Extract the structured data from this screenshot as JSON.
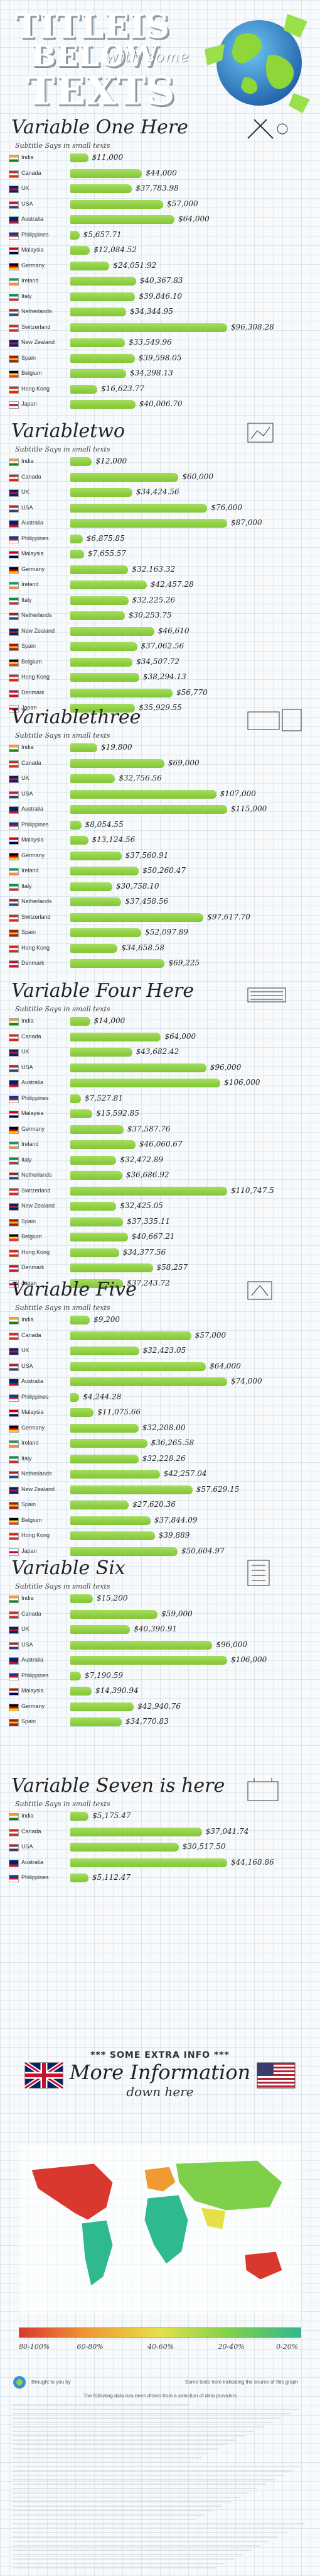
{
  "header": {
    "title_line1": "TITLEIS",
    "title_line2": "BELOW",
    "title_with": "with some",
    "title_line3": "TEXTS"
  },
  "sections": [
    {
      "title": "Variable One Here",
      "subtitle": "Subtitle Says in small texts",
      "rows": [
        {
          "country": "India",
          "value": 11000,
          "label": "$11,000"
        },
        {
          "country": "Canada",
          "value": 44000,
          "label": "$44,000"
        },
        {
          "country": "UK",
          "value": 37783.98,
          "label": "$37,783.98"
        },
        {
          "country": "USA",
          "value": 57000,
          "label": "$57,000"
        },
        {
          "country": "Australia",
          "value": 64000,
          "label": "$64,000"
        },
        {
          "country": "Philippines",
          "value": 5657.71,
          "label": "$5,657.71"
        },
        {
          "country": "Malaysia",
          "value": 12084.52,
          "label": "$12,084.52"
        },
        {
          "country": "Germany",
          "value": 24051.92,
          "label": "$24,051.92"
        },
        {
          "country": "Ireland",
          "value": 40367.83,
          "label": "$40,367.83"
        },
        {
          "country": "Italy",
          "value": 39846.1,
          "label": "$39,846.10"
        },
        {
          "country": "Netherlands",
          "value": 34344.95,
          "label": "$34,344.95"
        },
        {
          "country": "Switzerland",
          "value": 96308.28,
          "label": "$96,308.28"
        },
        {
          "country": "New Zealand",
          "value": 33549.96,
          "label": "$33,549.96"
        },
        {
          "country": "Spain",
          "value": 39598.05,
          "label": "$39,598.05"
        },
        {
          "country": "Belgium",
          "value": 34298.13,
          "label": "$34,298.13"
        },
        {
          "country": "Hong Kong",
          "value": 16623.77,
          "label": "$16,623.77"
        },
        {
          "country": "Japan",
          "value": 40006.7,
          "label": "$40,006.70"
        }
      ]
    },
    {
      "title": "Variabletwo",
      "subtitle": "Subtitle Says in small texts",
      "rows": [
        {
          "country": "India",
          "value": 12000,
          "label": "$12,000"
        },
        {
          "country": "Canada",
          "value": 60000,
          "label": "$60,000"
        },
        {
          "country": "UK",
          "value": 34424.56,
          "label": "$34,424.56"
        },
        {
          "country": "USA",
          "value": 76000,
          "label": "$76,000"
        },
        {
          "country": "Australia",
          "value": 87000,
          "label": "$87,000"
        },
        {
          "country": "Philippines",
          "value": 6875.85,
          "label": "$6,875.85"
        },
        {
          "country": "Malaysia",
          "value": 7655.57,
          "label": "$7,655.57"
        },
        {
          "country": "Germany",
          "value": 32163.32,
          "label": "$32,163.32"
        },
        {
          "country": "Ireland",
          "value": 42457.28,
          "label": "$42,457.28"
        },
        {
          "country": "Italy",
          "value": 32225.26,
          "label": "$32,225.26"
        },
        {
          "country": "Netherlands",
          "value": 30253.75,
          "label": "$30,253.75"
        },
        {
          "country": "New Zealand",
          "value": 46610,
          "label": "$46,610"
        },
        {
          "country": "Spain",
          "value": 37062.56,
          "label": "$37,062.56"
        },
        {
          "country": "Belgium",
          "value": 34507.72,
          "label": "$34,507.72"
        },
        {
          "country": "Hong Kong",
          "value": 38294.13,
          "label": "$38,294.13"
        },
        {
          "country": "Denmark",
          "value": 56770,
          "label": "$56,770"
        },
        {
          "country": "Japan",
          "value": 35929.55,
          "label": "$35,929.55"
        }
      ]
    },
    {
      "title": "Variablethree",
      "subtitle": "Subtitle Says in small texts",
      "rows": [
        {
          "country": "India",
          "value": 19800,
          "label": "$19,800"
        },
        {
          "country": "Canada",
          "value": 69000,
          "label": "$69,000"
        },
        {
          "country": "UK",
          "value": 32756.56,
          "label": "$32,756.56"
        },
        {
          "country": "USA",
          "value": 107000,
          "label": "$107,000"
        },
        {
          "country": "Australia",
          "value": 115000,
          "label": "$115,000"
        },
        {
          "country": "Philippines",
          "value": 8054.55,
          "label": "$8,054.55"
        },
        {
          "country": "Malaysia",
          "value": 13124.56,
          "label": "$13,124.56"
        },
        {
          "country": "Germany",
          "value": 37560.91,
          "label": "$37,560.91"
        },
        {
          "country": "Ireland",
          "value": 50260.47,
          "label": "$50,260.47"
        },
        {
          "country": "Italy",
          "value": 30758.1,
          "label": "$30,758.10"
        },
        {
          "country": "Netherlands",
          "value": 37458.56,
          "label": "$37,458.56"
        },
        {
          "country": "Switzerland",
          "value": 97617.7,
          "label": "$97,617.70"
        },
        {
          "country": "Spain",
          "value": 52097.89,
          "label": "$52,097.89"
        },
        {
          "country": "Hong Kong",
          "value": 34658.58,
          "label": "$34,658.58"
        },
        {
          "country": "Denmark",
          "value": 69225,
          "label": "$69,225"
        }
      ]
    },
    {
      "title": "Variable Four Here",
      "subtitle": "Subtitle Says in small texts",
      "rows": [
        {
          "country": "India",
          "value": 14000,
          "label": "$14,000"
        },
        {
          "country": "Canada",
          "value": 64000,
          "label": "$64,000"
        },
        {
          "country": "UK",
          "value": 43682.42,
          "label": "$43,682.42"
        },
        {
          "country": "USA",
          "value": 96000,
          "label": "$96,000"
        },
        {
          "country": "Australia",
          "value": 106000,
          "label": "$106,000"
        },
        {
          "country": "Philippines",
          "value": 7527.81,
          "label": "$7,527.81"
        },
        {
          "country": "Malaysia",
          "value": 15592.85,
          "label": "$15,592.85"
        },
        {
          "country": "Germany",
          "value": 37587.76,
          "label": "$37,587.76"
        },
        {
          "country": "Ireland",
          "value": 46060.67,
          "label": "$46,060.67"
        },
        {
          "country": "Italy",
          "value": 32472.89,
          "label": "$32,472.89"
        },
        {
          "country": "Netherlands",
          "value": 36686.92,
          "label": "$36,686.92"
        },
        {
          "country": "Switzerland",
          "value": 110747.5,
          "label": "$110,747.5"
        },
        {
          "country": "New Zealand",
          "value": 32425.05,
          "label": "$32,425.05"
        },
        {
          "country": "Spain",
          "value": 37335.11,
          "label": "$37,335.11"
        },
        {
          "country": "Belgium",
          "value": 40667.21,
          "label": "$40,667.21"
        },
        {
          "country": "Hong Kong",
          "value": 34377.56,
          "label": "$34,377.56"
        },
        {
          "country": "Denmark",
          "value": 58257,
          "label": "$58,257"
        },
        {
          "country": "Japan",
          "value": 37243.72,
          "label": "$37,243.72"
        }
      ]
    },
    {
      "title": "Variable Five",
      "subtitle": "Subtitle Says in small texts",
      "rows": [
        {
          "country": "India",
          "value": 9200,
          "label": "$9,200"
        },
        {
          "country": "Canada",
          "value": 57000,
          "label": "$57,000"
        },
        {
          "country": "UK",
          "value": 32423.05,
          "label": "$32,423.05"
        },
        {
          "country": "USA",
          "value": 64000,
          "label": "$64,000"
        },
        {
          "country": "Australia",
          "value": 74000,
          "label": "$74,000"
        },
        {
          "country": "Philippines",
          "value": 4244.28,
          "label": "$4,244.28"
        },
        {
          "country": "Malaysia",
          "value": 11075.66,
          "label": "$11,075.66"
        },
        {
          "country": "Germany",
          "value": 32208,
          "label": "$32,208.00"
        },
        {
          "country": "Ireland",
          "value": 36265.58,
          "label": "$36,265.58"
        },
        {
          "country": "Italy",
          "value": 32228.26,
          "label": "$32,228.26"
        },
        {
          "country": "Netherlands",
          "value": 42257.04,
          "label": "$42,257.04"
        },
        {
          "country": "New Zealand",
          "value": 57629.15,
          "label": "$57,629.15"
        },
        {
          "country": "Spain",
          "value": 27620.36,
          "label": "$27,620.36"
        },
        {
          "country": "Belgium",
          "value": 37844.09,
          "label": "$37,844.09"
        },
        {
          "country": "Hong Kong",
          "value": 39889,
          "label": "$39,889"
        },
        {
          "country": "Japan",
          "value": 50604.97,
          "label": "$50,604.97"
        }
      ]
    },
    {
      "title": "Variable Six",
      "subtitle": "Subtitle Says in small texts",
      "rows": [
        {
          "country": "India",
          "value": 15200,
          "label": "$15,200"
        },
        {
          "country": "Canada",
          "value": 59000,
          "label": "$59,000"
        },
        {
          "country": "UK",
          "value": 40390.91,
          "label": "$40,390.91"
        },
        {
          "country": "USA",
          "value": 96000,
          "label": "$96,000"
        },
        {
          "country": "Australia",
          "value": 106000,
          "label": "$106,000"
        },
        {
          "country": "Philippines",
          "value": 7190.59,
          "label": "$7,190.59"
        },
        {
          "country": "Malaysia",
          "value": 14390.94,
          "label": "$14,390.94"
        },
        {
          "country": "Germany",
          "value": 42940.76,
          "label": "$42,940.76"
        },
        {
          "country": "Spain",
          "value": 34770.83,
          "label": "$34,770.83"
        }
      ]
    },
    {
      "title": "Variable Seven is here",
      "subtitle": "Subtitle Says in small texts",
      "rows": [
        {
          "country": "India",
          "value": 5175.47,
          "label": "$5,175.47"
        },
        {
          "country": "Canada",
          "value": 37041.74,
          "label": "$37,041.74"
        },
        {
          "country": "USA",
          "value": 30517.5,
          "label": "$30,517.50"
        },
        {
          "country": "Australia",
          "value": 44168.86,
          "label": "$44,168.86"
        },
        {
          "country": "Philippines",
          "value": 5112.47,
          "label": "$5,112.47"
        }
      ]
    }
  ],
  "extra": {
    "label": "*** SOME EXTRA INFO ***",
    "title": "More Information",
    "subtitle": "down here"
  },
  "legend": {
    "ticks": [
      "80-100%",
      "60-80%",
      "40-60%",
      "20-40%",
      "0-20%"
    ],
    "colors": [
      "#d9382e",
      "#f09a34",
      "#e5e04a",
      "#7ed04b",
      "#2fb98f"
    ]
  },
  "footer": {
    "credit": "Brought to you by",
    "source_note": "Some texts here indicating the source of this graph",
    "follow_note": "The following data has been drawn from a selection of data providers"
  },
  "flag_colors": {
    "India": [
      "#ff9933",
      "#ffffff",
      "#138808"
    ],
    "Canada": [
      "#d52b1e",
      "#ffffff",
      "#d52b1e"
    ],
    "UK": [
      "#012169",
      "#c8102e",
      "#012169"
    ],
    "USA": [
      "#b22234",
      "#ffffff",
      "#3c3b6e"
    ],
    "Australia": [
      "#012169",
      "#012169",
      "#c8102e"
    ],
    "Philippines": [
      "#0038a8",
      "#ce1126",
      "#ffffff"
    ],
    "Malaysia": [
      "#cc0001",
      "#ffffff",
      "#010066"
    ],
    "Germany": [
      "#000000",
      "#dd0000",
      "#ffce00"
    ],
    "Ireland": [
      "#169b62",
      "#ffffff",
      "#ff883e"
    ],
    "Italy": [
      "#009246",
      "#ffffff",
      "#ce2b37"
    ],
    "Netherlands": [
      "#ae1c28",
      "#ffffff",
      "#21468b"
    ],
    "Switzerland": [
      "#d52b1e",
      "#ffffff",
      "#d52b1e"
    ],
    "New Zealand": [
      "#012169",
      "#c8102e",
      "#012169"
    ],
    "Spain": [
      "#aa151b",
      "#f1bf00",
      "#aa151b"
    ],
    "Belgium": [
      "#000000",
      "#fdda24",
      "#ef3340"
    ],
    "Hong Kong": [
      "#de2910",
      "#ffffff",
      "#de2910"
    ],
    "Denmark": [
      "#c8102e",
      "#ffffff",
      "#c8102e"
    ],
    "Japan": [
      "#ffffff",
      "#bc002d",
      "#ffffff"
    ]
  },
  "chart_data": [
    {
      "type": "bar",
      "title": "Variable One Here",
      "subtitle": "Subtitle Says in small texts",
      "categories": [
        "India",
        "Canada",
        "UK",
        "USA",
        "Australia",
        "Philippines",
        "Malaysia",
        "Germany",
        "Ireland",
        "Italy",
        "Netherlands",
        "Switzerland",
        "New Zealand",
        "Spain",
        "Belgium",
        "Hong Kong",
        "Japan"
      ],
      "values": [
        11000,
        44000,
        37783.98,
        57000,
        64000,
        5657.71,
        12084.52,
        24051.92,
        40367.83,
        39846.1,
        34344.95,
        96308.28,
        33549.96,
        39598.05,
        34298.13,
        16623.77,
        40006.7
      ]
    },
    {
      "type": "bar",
      "title": "Variabletwo",
      "subtitle": "Subtitle Says in small texts",
      "categories": [
        "India",
        "Canada",
        "UK",
        "USA",
        "Australia",
        "Philippines",
        "Malaysia",
        "Germany",
        "Ireland",
        "Italy",
        "Netherlands",
        "New Zealand",
        "Spain",
        "Belgium",
        "Hong Kong",
        "Denmark",
        "Japan"
      ],
      "values": [
        12000,
        60000,
        34424.56,
        76000,
        87000,
        6875.85,
        7655.57,
        32163.32,
        42457.28,
        32225.26,
        30253.75,
        46610,
        37062.56,
        34507.72,
        38294.13,
        56770,
        35929.55
      ]
    },
    {
      "type": "bar",
      "title": "Variablethree",
      "subtitle": "Subtitle Says in small texts",
      "categories": [
        "India",
        "Canada",
        "UK",
        "USA",
        "Australia",
        "Philippines",
        "Malaysia",
        "Germany",
        "Ireland",
        "Italy",
        "Netherlands",
        "Switzerland",
        "Spain",
        "Hong Kong",
        "Denmark"
      ],
      "values": [
        19800,
        69000,
        32756.56,
        107000,
        115000,
        8054.55,
        13124.56,
        37560.91,
        50260.47,
        30758.1,
        37458.56,
        97617.7,
        52097.89,
        34658.58,
        69225
      ]
    },
    {
      "type": "bar",
      "title": "Variable Four Here",
      "subtitle": "Subtitle Says in small texts",
      "categories": [
        "India",
        "Canada",
        "UK",
        "USA",
        "Australia",
        "Philippines",
        "Malaysia",
        "Germany",
        "Ireland",
        "Italy",
        "Netherlands",
        "Switzerland",
        "New Zealand",
        "Spain",
        "Belgium",
        "Hong Kong",
        "Denmark",
        "Japan"
      ],
      "values": [
        14000,
        64000,
        43682.42,
        96000,
        106000,
        7527.81,
        15592.85,
        37587.76,
        46060.67,
        32472.89,
        36686.92,
        110747.5,
        32425.05,
        37335.11,
        40667.21,
        34377.56,
        58257,
        37243.72
      ]
    },
    {
      "type": "bar",
      "title": "Variable Five",
      "subtitle": "Subtitle Says in small texts",
      "categories": [
        "India",
        "Canada",
        "UK",
        "USA",
        "Australia",
        "Philippines",
        "Malaysia",
        "Germany",
        "Ireland",
        "Italy",
        "Netherlands",
        "New Zealand",
        "Spain",
        "Belgium",
        "Hong Kong",
        "Japan"
      ],
      "values": [
        9200,
        57000,
        32423.05,
        64000,
        74000,
        4244.28,
        11075.66,
        32208,
        36265.58,
        32228.26,
        42257.04,
        57629.15,
        27620.36,
        37844.09,
        39889,
        50604.97
      ]
    },
    {
      "type": "bar",
      "title": "Variable Six",
      "subtitle": "Subtitle Says in small texts",
      "categories": [
        "India",
        "Canada",
        "UK",
        "USA",
        "Australia",
        "Philippines",
        "Malaysia",
        "Germany",
        "Spain"
      ],
      "values": [
        15200,
        59000,
        40390.91,
        96000,
        106000,
        7190.59,
        14390.94,
        42940.76,
        34770.83
      ]
    },
    {
      "type": "bar",
      "title": "Variable Seven is here",
      "subtitle": "Subtitle Says in small texts",
      "categories": [
        "India",
        "Canada",
        "USA",
        "Australia",
        "Philippines"
      ],
      "values": [
        5175.47,
        37041.74,
        30517.5,
        44168.86,
        5112.47
      ]
    }
  ]
}
